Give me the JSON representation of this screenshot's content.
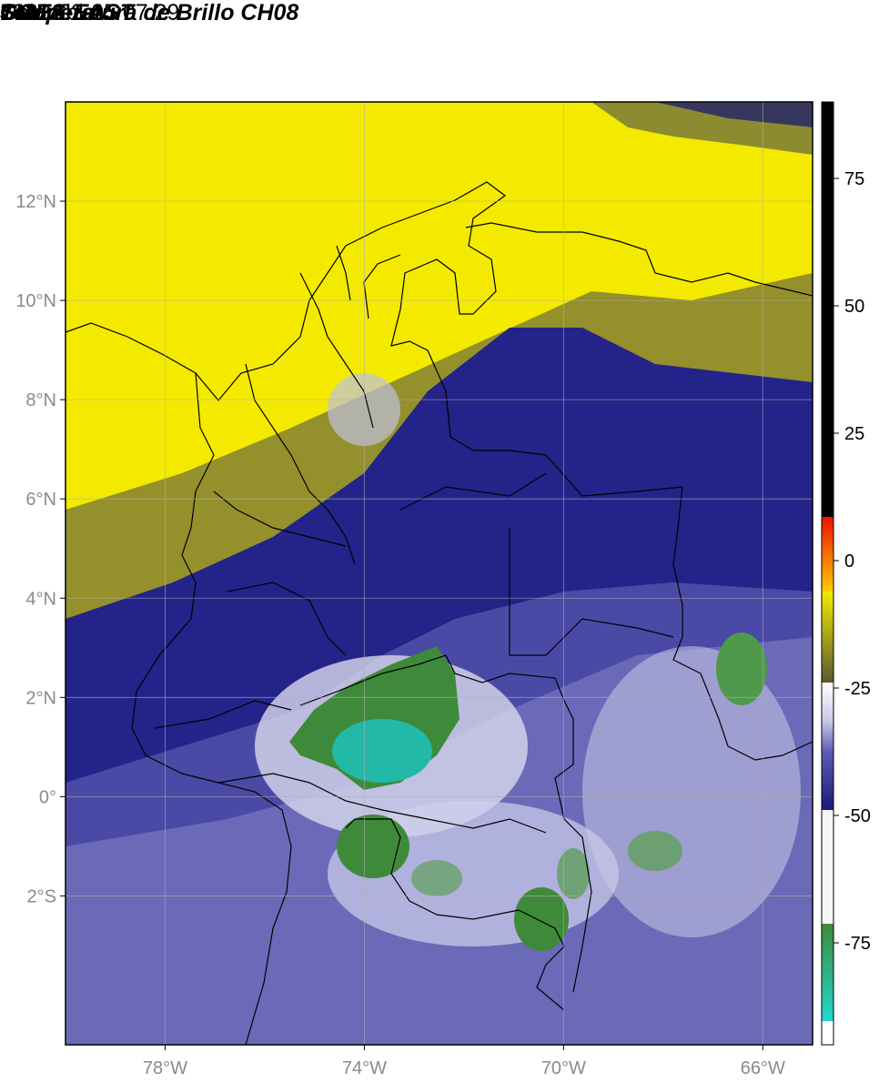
{
  "header": {
    "title_line1": "GOES-EAST",
    "title_line2": "Temperatura de Brillo CH08",
    "subtitle": "Colombia",
    "organization": "SIATA",
    "datetime": "2022-02-05 07:29"
  },
  "map": {
    "lon_range": [
      -80,
      -65
    ],
    "lat_range": [
      -5,
      14
    ],
    "lat_ticks": [
      {
        "value": 12,
        "label": "12°N"
      },
      {
        "value": 10,
        "label": "10°N"
      },
      {
        "value": 8,
        "label": "8°N"
      },
      {
        "value": 6,
        "label": "6°N"
      },
      {
        "value": 4,
        "label": "4°N"
      },
      {
        "value": 2,
        "label": "2°N"
      },
      {
        "value": 0,
        "label": "0°"
      },
      {
        "value": -2,
        "label": "2°S"
      }
    ],
    "lon_ticks": [
      {
        "value": -78,
        "label": "78°W"
      },
      {
        "value": -74,
        "label": "74°W"
      },
      {
        "value": -70,
        "label": "70°W"
      },
      {
        "value": -66,
        "label": "66°W"
      }
    ],
    "grid": true
  },
  "colorbar": {
    "range": [
      -95,
      90
    ],
    "ticks": [
      {
        "value": 75,
        "label": "75"
      },
      {
        "value": 50,
        "label": "50"
      },
      {
        "value": 25,
        "label": "25"
      },
      {
        "value": 0,
        "label": "0"
      },
      {
        "value": -25,
        "label": "-25"
      },
      {
        "value": -50,
        "label": "-50"
      },
      {
        "value": -75,
        "label": "-75"
      }
    ],
    "colors": {
      "very_cold": "#ffffff",
      "cyan": "#22d8d0",
      "green": "#3f8a3a",
      "white_band": "#f2f2f2",
      "light_blue": "#9999cc",
      "blue": "#4b4ba8",
      "navy": "#1a1a7a",
      "olive": "#6b6b2a",
      "yellow": "#f4ea00",
      "orange": "#ff9900",
      "red": "#ee1100",
      "black": "#000000"
    }
  }
}
